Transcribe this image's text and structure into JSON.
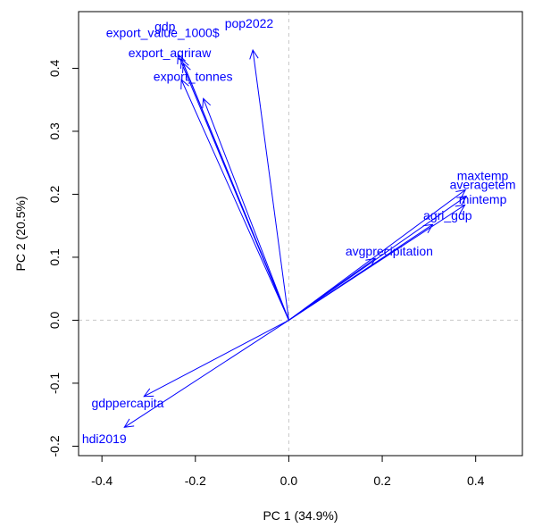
{
  "chart_data": {
    "type": "scatter",
    "subtype": "pca-biplot-loadings",
    "title": "",
    "xlabel": "PC 1 (34.9%)",
    "ylabel": "PC 2 (20.5%)",
    "xlim": [
      -0.45,
      0.5
    ],
    "ylim": [
      -0.215,
      0.49
    ],
    "xticks": [
      "-0.4",
      "-0.2",
      "0.0",
      "0.2",
      "0.4"
    ],
    "xtick_values": [
      -0.4,
      -0.2,
      0.0,
      0.2,
      0.4
    ],
    "yticks": [
      "-0.2",
      "-0.1",
      "0.0",
      "0.1",
      "0.2",
      "0.3",
      "0.4"
    ],
    "ytick_values": [
      -0.2,
      -0.1,
      0.0,
      0.1,
      0.2,
      0.3,
      0.4
    ],
    "grid": false,
    "reference_lines": {
      "x": 0,
      "y": 0,
      "style": "dashed",
      "color": "#c8c8c8"
    },
    "arrow_color": "#0000ff",
    "label_color": "#0000ff",
    "vectors": [
      {
        "name": "gdp",
        "x": -0.237,
        "y": 0.422,
        "label_x": -0.265,
        "label_y": 0.465
      },
      {
        "name": "pop2022",
        "x": -0.077,
        "y": 0.429,
        "label_x": -0.085,
        "label_y": 0.47
      },
      {
        "name": "export_value_1000$",
        "x": -0.23,
        "y": 0.415,
        "label_x": -0.27,
        "label_y": 0.455
      },
      {
        "name": "export_agriraw",
        "x": -0.226,
        "y": 0.408,
        "label_x": -0.255,
        "label_y": 0.423
      },
      {
        "name": "export_tonnes",
        "x": -0.23,
        "y": 0.382,
        "label_x": -0.205,
        "label_y": 0.385
      },
      {
        "name": "",
        "x": -0.183,
        "y": 0.352
      },
      {
        "name": "maxtemp",
        "x": 0.378,
        "y": 0.207,
        "label_x": 0.415,
        "label_y": 0.228
      },
      {
        "name": "averagetem",
        "x": 0.38,
        "y": 0.197,
        "label_x": 0.415,
        "label_y": 0.214
      },
      {
        "name": "mintemp",
        "x": 0.377,
        "y": 0.183,
        "label_x": 0.415,
        "label_y": 0.19
      },
      {
        "name": "agri_gdp",
        "x": 0.308,
        "y": 0.152,
        "label_x": 0.34,
        "label_y": 0.165
      },
      {
        "name": "avgprecipitation",
        "x": 0.185,
        "y": 0.098,
        "label_x": 0.215,
        "label_y": 0.108
      },
      {
        "name": "gdppercapita",
        "x": -0.31,
        "y": -0.121,
        "label_x": -0.345,
        "label_y": -0.133
      },
      {
        "name": "hdi2019",
        "x": -0.352,
        "y": -0.17,
        "label_x": -0.395,
        "label_y": -0.19
      }
    ]
  }
}
